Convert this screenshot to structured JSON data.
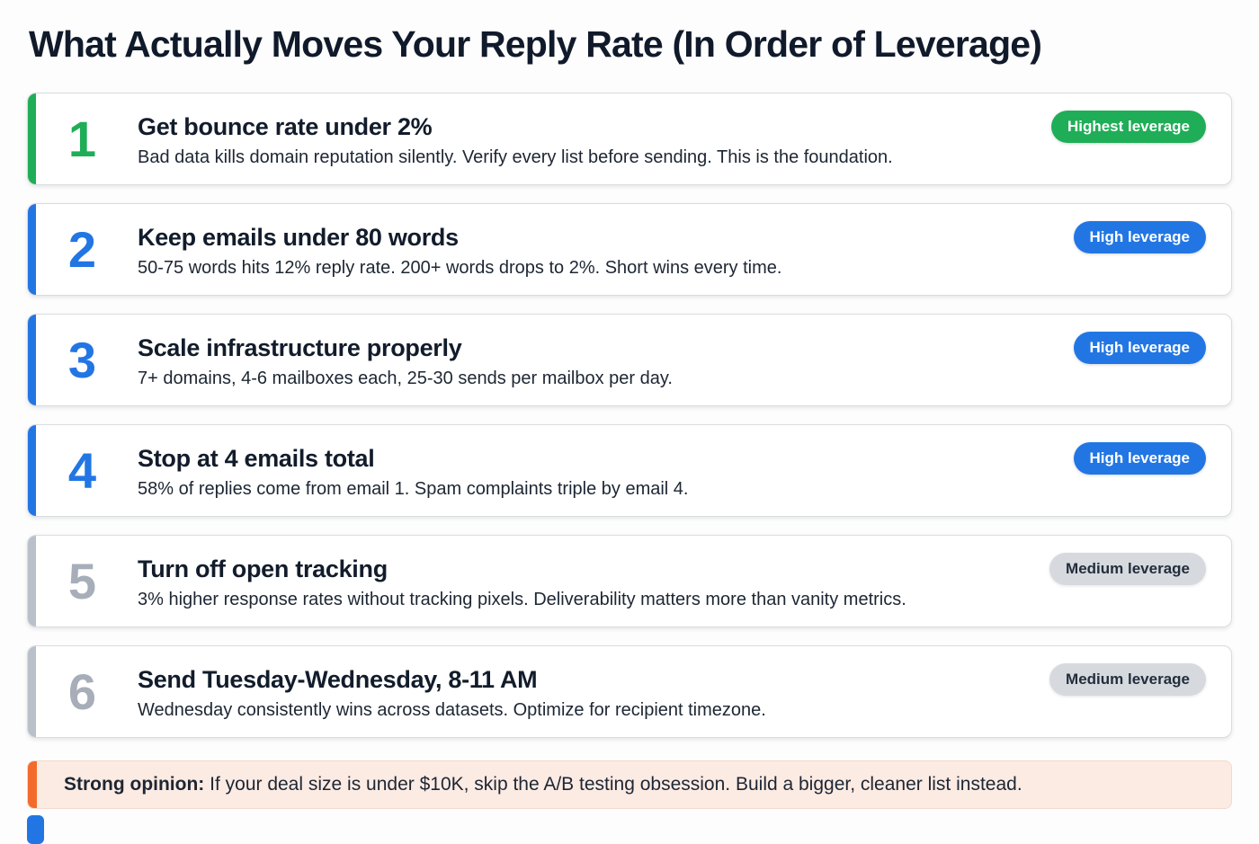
{
  "page": {
    "title": "What Actually Moves Your Reply Rate (In Order of Leverage)"
  },
  "colors": {
    "highest_leverage_green": "#1fae57",
    "high_leverage_blue": "#2276e4",
    "medium_leverage_gray": "#b9c0c9",
    "medium_badge_bg": "#d6dade",
    "callout_orange": "#f36b2c",
    "callout_bg": "#fcebe3"
  },
  "items": [
    {
      "number": "1",
      "title": "Get bounce rate under 2%",
      "description": "Bad data kills domain reputation silently. Verify every list before sending. This is the foundation.",
      "badge": "Highest leverage",
      "tier": "highest"
    },
    {
      "number": "2",
      "title": "Keep emails under 80 words",
      "description": "50-75 words hits 12% reply rate. 200+ words drops to 2%. Short wins every time.",
      "badge": "High leverage",
      "tier": "high"
    },
    {
      "number": "3",
      "title": "Scale infrastructure properly",
      "description": "7+ domains, 4-6 mailboxes each, 25-30 sends per mailbox per day.",
      "badge": "High leverage",
      "tier": "high"
    },
    {
      "number": "4",
      "title": "Stop at 4 emails total",
      "description": "58% of replies come from email 1. Spam complaints triple by email 4.",
      "badge": "High leverage",
      "tier": "high"
    },
    {
      "number": "5",
      "title": "Turn off open tracking",
      "description": "3% higher response rates without tracking pixels. Deliverability matters more than vanity metrics.",
      "badge": "Medium leverage",
      "tier": "medium"
    },
    {
      "number": "6",
      "title": "Send Tuesday-Wednesday, 8-11 AM",
      "description": "Wednesday consistently wins across datasets. Optimize for recipient timezone.",
      "badge": "Medium leverage",
      "tier": "medium"
    }
  ],
  "callout": {
    "lead": "Strong opinion:",
    "text": " If your deal size is under $10K, skip the A/B testing obsession. Build a bigger, cleaner list instead."
  }
}
